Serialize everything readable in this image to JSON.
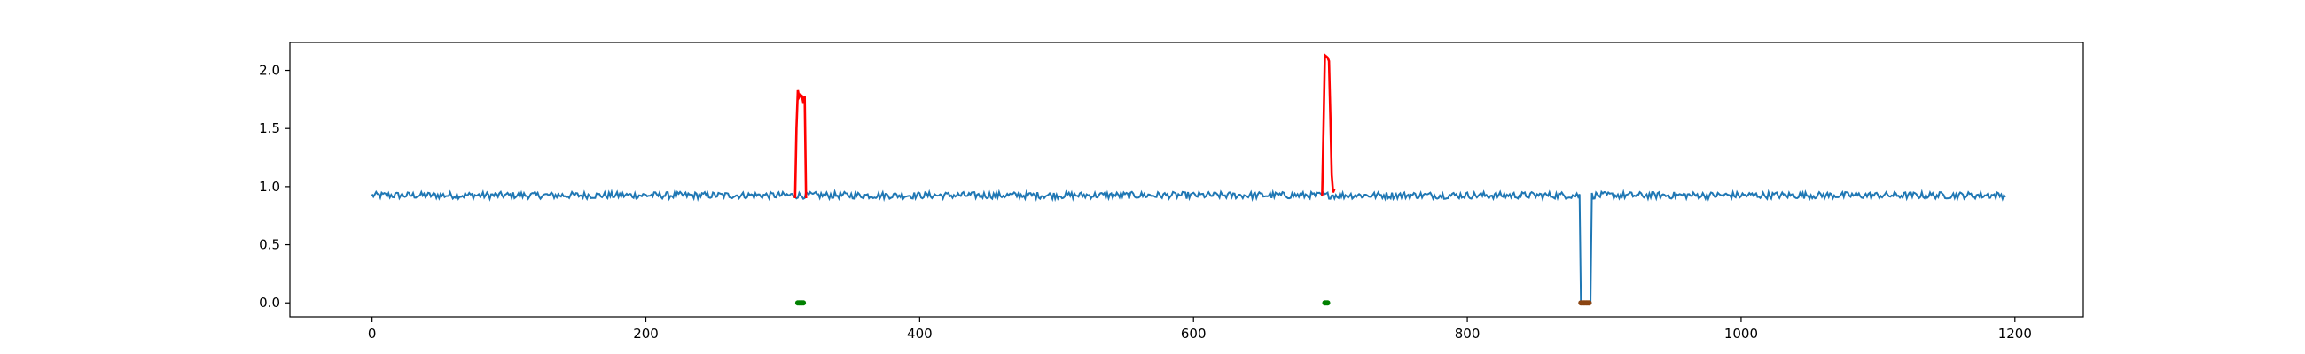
{
  "chart_data": {
    "type": "line",
    "title": "",
    "xlabel": "",
    "ylabel": "",
    "xlim": [
      -60,
      1250
    ],
    "ylim": [
      -0.12,
      2.24
    ],
    "x_ticks": [
      0,
      200,
      400,
      600,
      800,
      1000,
      1200
    ],
    "y_ticks": [
      0.0,
      0.5,
      1.0,
      1.5,
      2.0
    ],
    "x_tick_labels": [
      "0",
      "200",
      "400",
      "600",
      "800",
      "1000",
      "1200"
    ],
    "y_tick_labels": [
      "0.0",
      "0.5",
      "1.0",
      "1.5",
      "2.0"
    ],
    "grid": false,
    "legend": "none",
    "series": [
      {
        "color": "#1f77b4",
        "description": "baseline signal near 0.93 with noise, x from 0 to 1193, drops to 0.0 between 883 and 890",
        "x_range": [
          0,
          1193
        ],
        "baseline": 0.925,
        "noise": 0.03,
        "dips": [
          {
            "x0": 883,
            "x1": 890,
            "value": 0.0
          }
        ]
      },
      {
        "color": "#ff0000",
        "description": "spike segments",
        "segments": [
          [
            [
              309,
              0.9
            ],
            [
              310,
              1.5
            ],
            [
              311,
              1.83
            ],
            [
              312,
              1.77
            ],
            [
              313,
              1.79
            ],
            [
              314,
              1.78
            ],
            [
              315,
              1.72
            ],
            [
              316,
              1.78
            ],
            [
              317,
              0.9
            ]
          ],
          [
            [
              694,
              0.92
            ],
            [
              695,
              1.5
            ],
            [
              696,
              2.13
            ],
            [
              697,
              2.12
            ],
            [
              698,
              2.11
            ],
            [
              699,
              2.08
            ],
            [
              700,
              1.6
            ],
            [
              701,
              1.1
            ],
            [
              702,
              0.95
            ],
            [
              703,
              0.98
            ]
          ]
        ]
      },
      {
        "color": "#008000",
        "description": "green markers at y=0",
        "points": [
          [
            311,
            0.0
          ],
          [
            312,
            0.0
          ],
          [
            313,
            0.0
          ],
          [
            314,
            0.0
          ],
          [
            315,
            0.0
          ],
          [
            696,
            0.0
          ],
          [
            697,
            0.0
          ],
          [
            698,
            0.0
          ]
        ]
      },
      {
        "color": "#8b4513",
        "description": "brown markers at y=0",
        "points": [
          [
            883,
            0.0
          ],
          [
            884,
            0.0
          ],
          [
            885,
            0.0
          ],
          [
            886,
            0.0
          ],
          [
            887,
            0.0
          ],
          [
            888,
            0.0
          ],
          [
            889,
            0.0
          ]
        ]
      }
    ]
  }
}
